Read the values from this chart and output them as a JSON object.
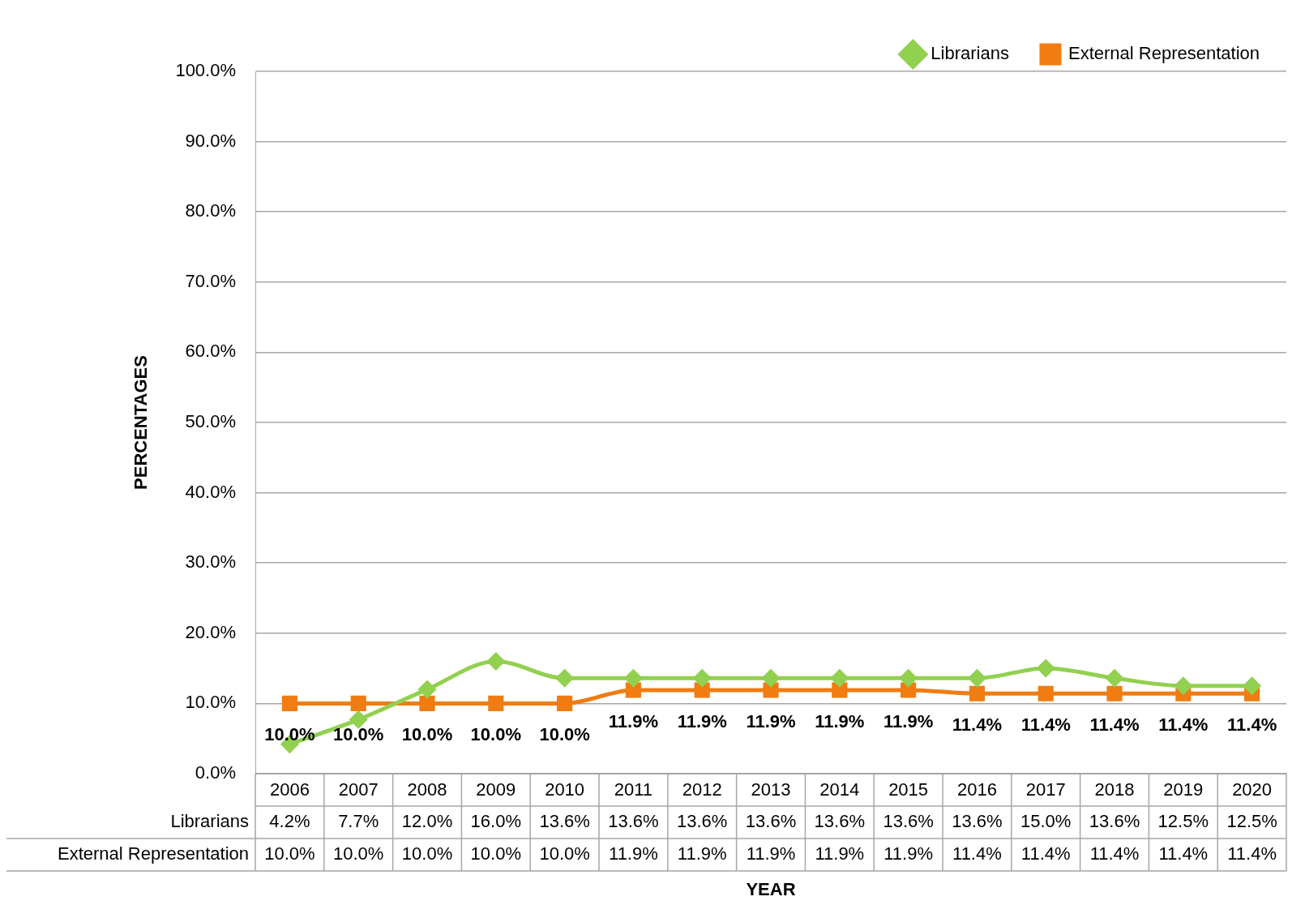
{
  "chart_data": {
    "type": "line",
    "xlabel": "YEAR",
    "ylabel": "PERCENTAGES",
    "categories": [
      "2006",
      "2007",
      "2008",
      "2009",
      "2010",
      "2011",
      "2012",
      "2013",
      "2014",
      "2015",
      "2016",
      "2017",
      "2018",
      "2019",
      "2020"
    ],
    "series": [
      {
        "name": "Librarians",
        "color": "#92d050",
        "marker": "diamond",
        "values": [
          4.2,
          7.7,
          12.0,
          16.0,
          13.6,
          13.6,
          13.6,
          13.6,
          13.6,
          13.6,
          13.6,
          15.0,
          13.6,
          12.5,
          12.5
        ],
        "value_labels": [
          "4.2%",
          "7.7%",
          "12.0%",
          "16.0%",
          "13.6%",
          "13.6%",
          "13.6%",
          "13.6%",
          "13.6%",
          "13.6%",
          "13.6%",
          "15.0%",
          "13.6%",
          "12.5%",
          "12.5%"
        ]
      },
      {
        "name": "External Representation",
        "color": "#f07c12",
        "marker": "square",
        "values": [
          10.0,
          10.0,
          10.0,
          10.0,
          10.0,
          11.9,
          11.9,
          11.9,
          11.9,
          11.9,
          11.4,
          11.4,
          11.4,
          11.4,
          11.4
        ],
        "value_labels": [
          "10.0%",
          "10.0%",
          "10.0%",
          "10.0%",
          "10.0%",
          "11.9%",
          "11.9%",
          "11.9%",
          "11.9%",
          "11.9%",
          "11.4%",
          "11.4%",
          "11.4%",
          "11.4%",
          "11.4%"
        ]
      }
    ],
    "ylim": [
      0,
      100
    ],
    "yticks": [
      {
        "value": 0,
        "label": "0.0%"
      },
      {
        "value": 10,
        "label": "10.0%"
      },
      {
        "value": 20,
        "label": "20.0%"
      },
      {
        "value": 30,
        "label": "30.0%"
      },
      {
        "value": 40,
        "label": "40.0%"
      },
      {
        "value": 50,
        "label": "50.0%"
      },
      {
        "value": 60,
        "label": "60.0%"
      },
      {
        "value": 70,
        "label": "70.0%"
      },
      {
        "value": 80,
        "label": "80.0%"
      },
      {
        "value": 90,
        "label": "90.0%"
      },
      {
        "value": 100,
        "label": "100.0%"
      }
    ],
    "grid": "y",
    "legend": "top right",
    "line_style": "solid"
  }
}
